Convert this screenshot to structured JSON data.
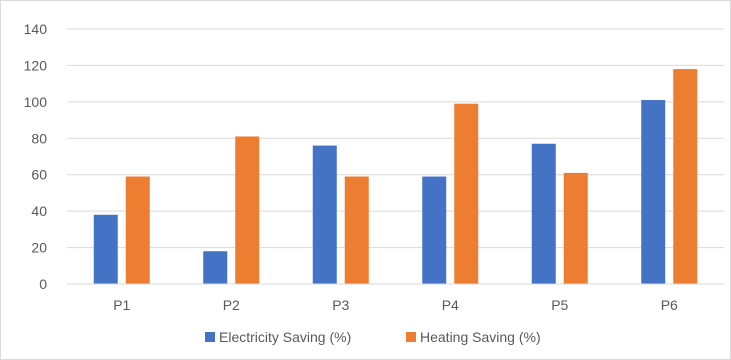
{
  "chart_data": {
    "type": "bar",
    "title": "",
    "xlabel": "",
    "ylabel": "",
    "categories": [
      "P1",
      "P2",
      "P3",
      "P4",
      "P5",
      "P6"
    ],
    "ylim": [
      0,
      140
    ],
    "yticks": [
      0,
      20,
      40,
      60,
      80,
      100,
      120,
      140
    ],
    "grid": true,
    "legend_position": "bottom",
    "series": [
      {
        "name": "Electricity Saving (%)",
        "color": "#4472C4",
        "values": [
          38,
          18,
          76,
          59,
          77,
          101
        ]
      },
      {
        "name": "Heating Saving (%)",
        "color": "#ED7D31",
        "values": [
          59,
          81,
          59,
          99,
          61,
          118
        ]
      }
    ]
  }
}
